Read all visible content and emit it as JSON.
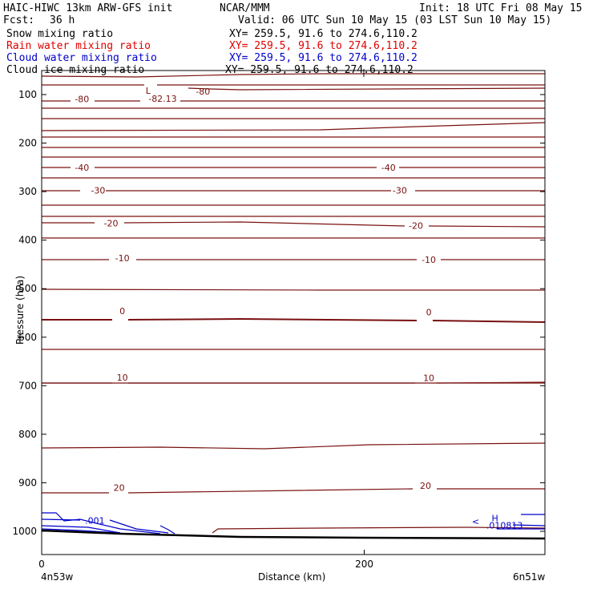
{
  "header": {
    "title": "HAIC-HIWC 13km ARW-GFS init",
    "org": "NCAR/MMM",
    "init": "Init: 18 UTC Fri 08 May 15",
    "fcst_label": "Fcst:",
    "fcst_value": "36 h",
    "valid": "Valid: 06 UTC Sun 10 May 15 (03 LST Sun 10 May 15)"
  },
  "fields": [
    {
      "name": "Snow mixing ratio",
      "xy": "XY= 259.5, 91.6 to 274.6,110.2",
      "color": "#000000"
    },
    {
      "name": "Rain water mixing ratio",
      "xy": "XY= 259.5, 91.6 to 274.6,110.2",
      "color": "#e00000"
    },
    {
      "name": "Cloud water mixing ratio",
      "xy": "XY= 259.5, 91.6 to 274.6,110.2",
      "color": "#0000cc"
    },
    {
      "name": "Cloud ice mixing ratio",
      "xy": "XY= 259.5, 91.6 to 274.6,110.2",
      "color": "#000000"
    }
  ],
  "chart_data": {
    "type": "cross-section contour",
    "xlabel": "Distance (km)",
    "ylabel": "Pressure (hPa)",
    "xlim": [
      0,
      312
    ],
    "x_ticks": [
      0,
      200
    ],
    "y_ticks": [
      100,
      200,
      300,
      400,
      500,
      600,
      700,
      800,
      900,
      1000
    ],
    "left_endpoint": "4n53w",
    "right_endpoint": "6n51w",
    "colors": {
      "temperature": "#7a1010",
      "cloud_water": "#0000cc",
      "terrain": "#000000"
    },
    "temperature_labels": [
      {
        "text": "-80",
        "x": 25,
        "p": 109
      },
      {
        "text": "-80",
        "x": 100,
        "p": 93
      },
      {
        "text": "-82.13",
        "x": 75,
        "p": 108
      },
      {
        "text": "L",
        "x": 66,
        "p": 92
      },
      {
        "text": "-40",
        "x": 25,
        "p": 250
      },
      {
        "text": "-40",
        "x": 215,
        "p": 250
      },
      {
        "text": "-30",
        "x": 35,
        "p": 297
      },
      {
        "text": "-30",
        "x": 222,
        "p": 297
      },
      {
        "text": "-20",
        "x": 43,
        "p": 365
      },
      {
        "text": "-20",
        "x": 232,
        "p": 370
      },
      {
        "text": "-10",
        "x": 50,
        "p": 437
      },
      {
        "text": "-10",
        "x": 240,
        "p": 440
      },
      {
        "text": "0",
        "x": 50,
        "p": 546
      },
      {
        "text": "0",
        "x": 240,
        "p": 548
      },
      {
        "text": "10",
        "x": 50,
        "p": 683
      },
      {
        "text": "10",
        "x": 240,
        "p": 684
      },
      {
        "text": "20",
        "x": 48,
        "p": 910
      },
      {
        "text": "20",
        "x": 238,
        "p": 906
      }
    ],
    "cloud_water_labels": [
      {
        "text": ".001",
        "x": 33,
        "p": 978
      },
      {
        "text": "H",
        "x": 281,
        "p": 973
      },
      {
        "text": ".010813",
        "x": 287,
        "p": 988
      },
      {
        "text": "<",
        "x": 269,
        "p": 979
      }
    ]
  }
}
